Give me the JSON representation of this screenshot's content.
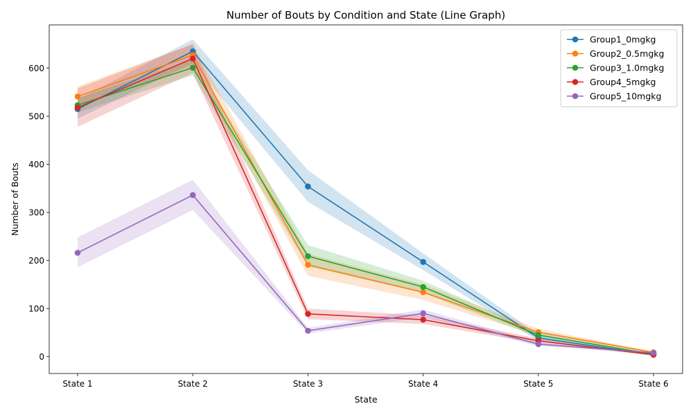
{
  "chart_data": {
    "type": "line",
    "title": "Number of Bouts by Condition and State (Line Graph)",
    "xlabel": "State",
    "ylabel": "Number of Bouts",
    "categories": [
      "State 1",
      "State 2",
      "State 3",
      "State 4",
      "State 5",
      "State 6"
    ],
    "ylim": [
      -35,
      690
    ],
    "yticks": [
      0,
      100,
      200,
      300,
      400,
      500,
      600
    ],
    "grid": false,
    "legend_position": "top-right",
    "shaded_band": "error band around each series",
    "series": [
      {
        "name": "Group1_0mgkg",
        "color": "#1f77b4",
        "values": [
          515,
          635,
          354,
          197,
          39,
          4
        ],
        "lower": [
          495,
          610,
          322,
          180,
          33,
          2
        ],
        "upper": [
          535,
          660,
          388,
          215,
          46,
          6
        ]
      },
      {
        "name": "Group2_0.5mgkg",
        "color": "#ff7f0e",
        "values": [
          541,
          627,
          191,
          134,
          51,
          9
        ],
        "lower": [
          520,
          605,
          168,
          118,
          44,
          7
        ],
        "upper": [
          562,
          650,
          214,
          150,
          58,
          11
        ]
      },
      {
        "name": "Group3_1.0mgkg",
        "color": "#2ca02c",
        "values": [
          523,
          601,
          209,
          145,
          45,
          5
        ],
        "lower": [
          508,
          585,
          188,
          132,
          40,
          3
        ],
        "upper": [
          538,
          617,
          232,
          158,
          50,
          7
        ]
      },
      {
        "name": "Group4_5mgkg",
        "color": "#d62728",
        "values": [
          518,
          620,
          89,
          77,
          33,
          4
        ],
        "lower": [
          478,
          590,
          78,
          68,
          28,
          2
        ],
        "upper": [
          558,
          650,
          100,
          86,
          38,
          6
        ]
      },
      {
        "name": "Group5_10mgkg",
        "color": "#9467bd",
        "values": [
          216,
          336,
          54,
          90,
          26,
          8
        ],
        "lower": [
          186,
          305,
          48,
          82,
          22,
          6
        ],
        "upper": [
          248,
          368,
          60,
          98,
          30,
          10
        ]
      }
    ]
  }
}
